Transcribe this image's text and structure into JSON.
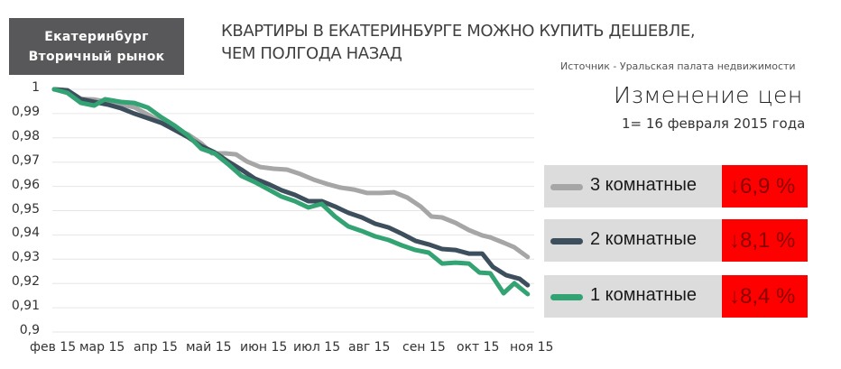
{
  "header": {
    "city_line1": "Екатеринбург",
    "city_line2": "Вторичный рынок",
    "headline_line1": "КВАРТИРЫ В ЕКАТЕРИНБУРГЕ МОЖНО КУПИТЬ ДЕШЕВЛЕ,",
    "headline_line2": "ЧЕМ ПОЛГОДА НАЗАД",
    "source": "Источник - Уральская палата недвижимости",
    "change_title": "Изменение цен",
    "change_subtitle": "1= 16 февраля 2015 года"
  },
  "legend": [
    {
      "label": "3 комнатные",
      "change": "↓6,9 %",
      "color": "#a6a6a6"
    },
    {
      "label": "2 комнатные",
      "change": "↓8,1 %",
      "color": "#3d4f5c"
    },
    {
      "label": "1 комнатные",
      "change": "↓8,4 %",
      "color": "#33a373"
    }
  ],
  "colors": {
    "gray": "#a6a6a6",
    "dark": "#3d4f5c",
    "green": "#33a373",
    "badge": "#ff0000",
    "badge_text": "#8b0000",
    "legend_bg": "#dcdcdc",
    "city_box": "#58585a"
  },
  "chart_data": {
    "type": "line",
    "title": "Изменение цен",
    "subtitle": "1= 16 февраля 2015 года",
    "xlabel": "",
    "ylabel": "",
    "ylim": [
      0.9,
      1.0
    ],
    "grid": true,
    "legend_position": "right",
    "y_ticks": [
      "1",
      "0,99",
      "0,98",
      "0,97",
      "0,96",
      "0,95",
      "0,94",
      "0,93",
      "0,92",
      "0,91",
      "0,9"
    ],
    "x_ticks": [
      "фев 15",
      "мар 15",
      "апр 15",
      "май 15",
      "июн 15",
      "июл 15",
      "авг 15",
      "сен 15",
      "окт 15",
      "ноя 15"
    ],
    "x_tick_positions": [
      0,
      1,
      2,
      3,
      4,
      5,
      6,
      7,
      8,
      9
    ],
    "series": [
      {
        "name": "3 комнатные",
        "change": "-6,9 %",
        "x": [
          0,
          0.25,
          0.5,
          0.75,
          1.0,
          1.25,
          1.5,
          1.75,
          2.0,
          2.25,
          2.5,
          2.75,
          2.95,
          3.2,
          3.4,
          3.6,
          3.85,
          4.1,
          4.35,
          4.6,
          4.85,
          5.1,
          5.35,
          5.6,
          5.85,
          6.1,
          6.35,
          6.6,
          6.85,
          7.05,
          7.25,
          7.5,
          7.75,
          8.0,
          8.15,
          8.4,
          8.6,
          8.85
        ],
        "values": [
          1.0,
          0.9995,
          0.996,
          0.9958,
          0.9948,
          0.9937,
          0.9926,
          0.9896,
          0.9866,
          0.984,
          0.9814,
          0.9777,
          0.9736,
          0.9736,
          0.9732,
          0.9703,
          0.968,
          0.9673,
          0.9669,
          0.9651,
          0.9628,
          0.961,
          0.9595,
          0.9587,
          0.9573,
          0.9573,
          0.9576,
          0.9554,
          0.9517,
          0.9476,
          0.9472,
          0.945,
          0.942,
          0.9398,
          0.939,
          0.9368,
          0.9349,
          0.9309
        ]
      },
      {
        "name": "2 комнатные",
        "change": "-8,1 %",
        "x": [
          0,
          0.25,
          0.5,
          0.75,
          1.0,
          1.25,
          1.5,
          1.75,
          2.0,
          2.25,
          2.5,
          2.75,
          3.0,
          3.25,
          3.5,
          3.75,
          4.0,
          4.25,
          4.5,
          4.75,
          5.0,
          5.25,
          5.5,
          5.75,
          6.0,
          6.25,
          6.5,
          6.75,
          7.0,
          7.25,
          7.5,
          7.75,
          8.0,
          8.2,
          8.45,
          8.7,
          8.85
        ],
        "values": [
          1.0,
          0.9996,
          0.996,
          0.9948,
          0.9937,
          0.9922,
          0.99,
          0.9881,
          0.9862,
          0.9833,
          0.9803,
          0.9766,
          0.974,
          0.9703,
          0.9669,
          0.9632,
          0.961,
          0.9584,
          0.9565,
          0.9539,
          0.9539,
          0.9517,
          0.9491,
          0.9472,
          0.9446,
          0.9431,
          0.9405,
          0.9376,
          0.9361,
          0.9342,
          0.9338,
          0.9323,
          0.9323,
          0.9268,
          0.9234,
          0.9219,
          0.9193
        ]
      },
      {
        "name": "1 комнатные",
        "change": "-8,4 %",
        "x": [
          0,
          0.25,
          0.5,
          0.75,
          0.95,
          1.25,
          1.5,
          1.75,
          2.0,
          2.25,
          2.5,
          2.75,
          3.0,
          3.25,
          3.5,
          3.75,
          4.0,
          4.25,
          4.5,
          4.75,
          5.0,
          5.25,
          5.5,
          5.75,
          6.0,
          6.25,
          6.5,
          6.75,
          7.0,
          7.25,
          7.5,
          7.75,
          7.95,
          8.15,
          8.4,
          8.6,
          8.85
        ],
        "values": [
          1.0,
          0.9985,
          0.9944,
          0.9933,
          0.9959,
          0.9948,
          0.9944,
          0.9925,
          0.9885,
          0.9851,
          0.981,
          0.9755,
          0.9736,
          0.9692,
          0.9643,
          0.9618,
          0.9588,
          0.9558,
          0.9539,
          0.9513,
          0.9528,
          0.9476,
          0.9435,
          0.9416,
          0.9394,
          0.9379,
          0.9357,
          0.9338,
          0.9327,
          0.9282,
          0.9286,
          0.9282,
          0.9245,
          0.9242,
          0.916,
          0.9201,
          0.9156
        ]
      }
    ]
  }
}
